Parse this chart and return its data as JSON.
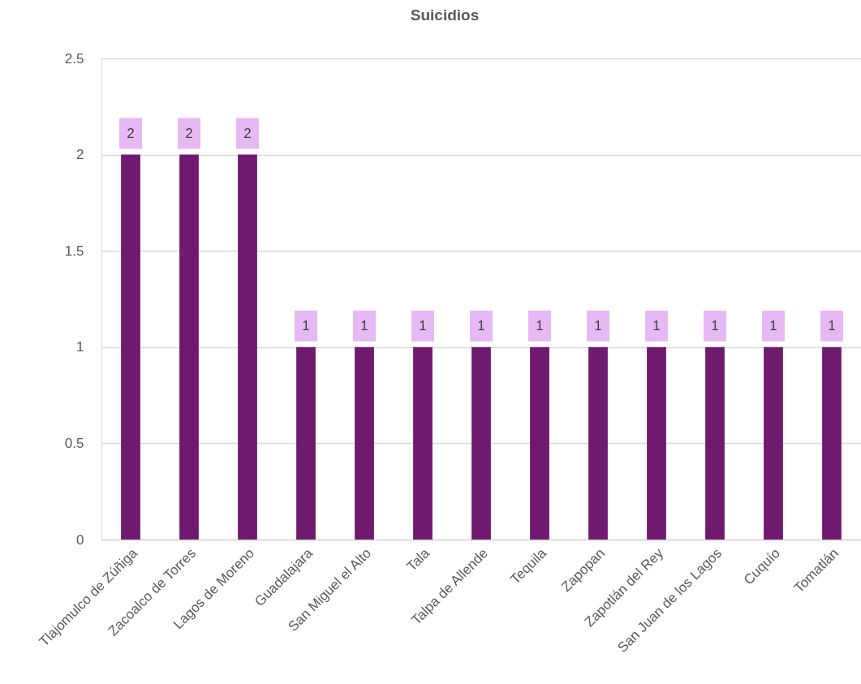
{
  "chart_data": {
    "type": "bar",
    "title": "Suicidios",
    "categories": [
      "Tlajomulco de Zúñiga",
      "Zacoalco de Torres",
      "Lagos de Moreno",
      "Guadalajara",
      "San Miguel el Alto",
      "Tala",
      "Talpa de Allende",
      "Tequila",
      "Zapopan",
      "Zapotlán del Rey",
      "San Juan de los Lagos",
      "Cuquío",
      "Tomatlán"
    ],
    "values": [
      2,
      2,
      2,
      1,
      1,
      1,
      1,
      1,
      1,
      1,
      1,
      1,
      1
    ],
    "color": "#6f1a6f",
    "ylim": [
      0,
      2.5
    ],
    "yticks": [
      0,
      0.5,
      1,
      1.5,
      2,
      2.5
    ],
    "grid": "y",
    "data_labels": true
  }
}
